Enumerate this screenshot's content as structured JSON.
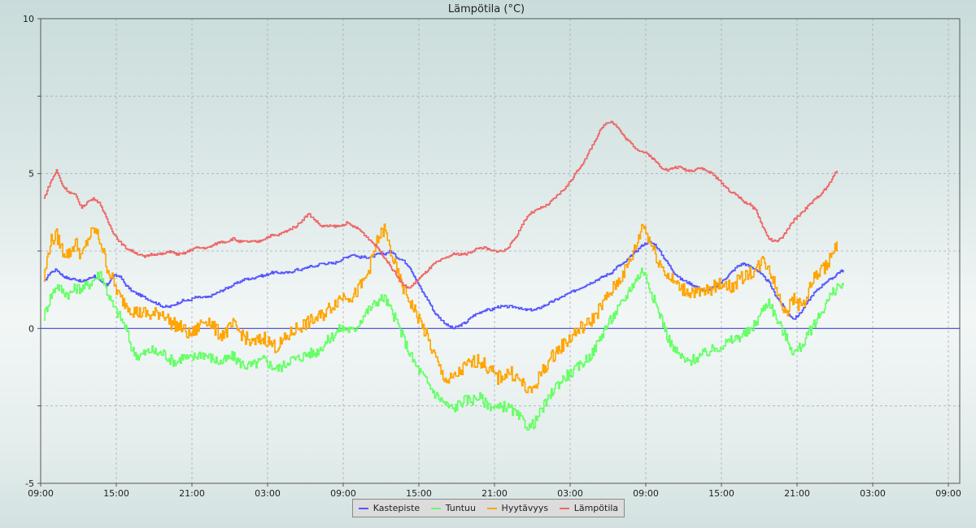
{
  "chart_data": {
    "type": "line",
    "title": "Lämpötila (°C)",
    "xlabel": "",
    "ylabel": "",
    "ylim": [
      -5,
      10
    ],
    "yticks": [
      -5,
      0,
      5,
      10
    ],
    "xticks": [
      "09:00",
      "15:00",
      "21:00",
      "03:00",
      "09:00",
      "15:00",
      "21:00",
      "03:00",
      "09:00",
      "15:00",
      "21:00",
      "03:00",
      "09:00"
    ],
    "x_hours_step": 0.5,
    "x_start_label": "09:15",
    "grid": true,
    "legend_position": "bottom-center",
    "series": [
      {
        "name": "Kastepiste",
        "color": "#5555ff",
        "values": [
          1.5,
          1.8,
          1.9,
          1.7,
          1.6,
          1.6,
          1.5,
          1.6,
          1.7,
          1.5,
          1.4,
          1.7,
          1.7,
          1.4,
          1.2,
          1.1,
          1.0,
          0.9,
          0.8,
          0.7,
          0.7,
          0.8,
          0.9,
          0.9,
          1.0,
          1.0,
          1.0,
          1.1,
          1.2,
          1.3,
          1.4,
          1.5,
          1.6,
          1.6,
          1.7,
          1.7,
          1.8,
          1.8,
          1.8,
          1.8,
          1.9,
          1.9,
          2.0,
          2.0,
          2.1,
          2.1,
          2.1,
          2.2,
          2.3,
          2.4,
          2.3,
          2.3,
          2.3,
          2.4,
          2.4,
          2.5,
          2.3,
          2.2,
          2.0,
          1.6,
          1.2,
          0.9,
          0.5,
          0.3,
          0.1,
          0.0,
          0.1,
          0.2,
          0.4,
          0.5,
          0.6,
          0.6,
          0.7,
          0.7,
          0.7,
          0.7,
          0.6,
          0.6,
          0.6,
          0.7,
          0.8,
          0.9,
          1.0,
          1.1,
          1.2,
          1.3,
          1.4,
          1.5,
          1.6,
          1.7,
          1.8,
          2.0,
          2.1,
          2.3,
          2.5,
          2.7,
          2.8,
          2.7,
          2.4,
          2.1,
          1.8,
          1.6,
          1.5,
          1.4,
          1.3,
          1.2,
          1.3,
          1.4,
          1.6,
          1.8,
          2.0,
          2.1,
          2.0,
          1.9,
          1.7,
          1.5,
          1.1,
          0.8,
          0.5,
          0.3,
          0.5,
          0.8,
          1.1,
          1.3,
          1.5,
          1.6,
          1.8,
          1.9
        ]
      },
      {
        "name": "Tuntuu",
        "color": "#66ff66",
        "values": [
          0.4,
          1.0,
          1.4,
          1.2,
          1.1,
          1.3,
          1.3,
          1.4,
          1.6,
          1.8,
          1.2,
          0.7,
          0.4,
          0.0,
          -0.7,
          -0.9,
          -0.8,
          -0.7,
          -0.8,
          -0.8,
          -1.0,
          -1.1,
          -0.9,
          -1.0,
          -0.9,
          -0.8,
          -0.9,
          -1.0,
          -1.1,
          -1.0,
          -0.9,
          -1.1,
          -1.2,
          -1.2,
          -1.1,
          -1.0,
          -1.2,
          -1.3,
          -1.2,
          -1.0,
          -1.0,
          -0.9,
          -0.8,
          -0.8,
          -0.6,
          -0.4,
          -0.2,
          0.0,
          0.0,
          -0.1,
          0.2,
          0.5,
          0.7,
          0.9,
          1.0,
          0.6,
          0.2,
          -0.3,
          -0.8,
          -1.2,
          -1.5,
          -1.8,
          -2.1,
          -2.3,
          -2.5,
          -2.6,
          -2.4,
          -2.3,
          -2.3,
          -2.2,
          -2.4,
          -2.5,
          -2.6,
          -2.5,
          -2.6,
          -2.8,
          -3.0,
          -3.2,
          -3.0,
          -2.6,
          -2.3,
          -1.9,
          -1.7,
          -1.5,
          -1.4,
          -1.2,
          -1.0,
          -0.8,
          -0.4,
          0.0,
          0.3,
          0.6,
          0.9,
          1.3,
          1.6,
          1.9,
          1.4,
          0.8,
          0.3,
          -0.3,
          -0.7,
          -0.9,
          -1.1,
          -1.0,
          -0.9,
          -0.8,
          -0.7,
          -0.6,
          -0.5,
          -0.4,
          -0.3,
          -0.2,
          -0.1,
          0.2,
          0.6,
          0.9,
          0.4,
          0.0,
          -0.4,
          -0.8,
          -0.6,
          -0.3,
          0.1,
          0.4,
          0.8,
          1.1,
          1.4,
          1.3
        ]
      },
      {
        "name": "Hyytävyys",
        "color": "#ffa500",
        "values": [
          1.6,
          2.8,
          3.0,
          2.5,
          2.4,
          2.8,
          2.3,
          2.9,
          3.2,
          2.8,
          2.0,
          1.5,
          1.0,
          0.8,
          0.6,
          0.5,
          0.5,
          0.4,
          0.5,
          0.5,
          0.2,
          0.1,
          0.0,
          -0.2,
          -0.1,
          0.2,
          0.3,
          0.0,
          -0.2,
          -0.1,
          0.1,
          -0.1,
          -0.3,
          -0.5,
          -0.4,
          -0.3,
          -0.5,
          -0.6,
          -0.4,
          -0.2,
          0.0,
          0.1,
          0.2,
          0.3,
          0.4,
          0.6,
          0.8,
          1.0,
          1.1,
          1.0,
          1.3,
          1.6,
          2.2,
          2.9,
          3.2,
          2.5,
          1.8,
          1.3,
          0.9,
          0.5,
          0.1,
          -0.4,
          -0.9,
          -1.4,
          -1.7,
          -1.6,
          -1.4,
          -1.2,
          -1.1,
          -1.0,
          -1.2,
          -1.4,
          -1.6,
          -1.5,
          -1.4,
          -1.6,
          -1.8,
          -2.1,
          -1.8,
          -1.4,
          -1.1,
          -0.8,
          -0.6,
          -0.4,
          -0.2,
          0.0,
          0.1,
          0.3,
          0.6,
          0.9,
          1.2,
          1.5,
          1.8,
          2.2,
          2.7,
          3.4,
          2.9,
          2.4,
          2.0,
          1.7,
          1.5,
          1.3,
          1.2,
          1.2,
          1.1,
          1.2,
          1.3,
          1.4,
          1.5,
          1.3,
          1.5,
          1.7,
          1.8,
          1.9,
          2.2,
          2.0,
          1.4,
          0.8,
          0.6,
          1.0,
          0.7,
          1.0,
          1.6,
          1.8,
          2.0,
          2.4,
          2.7
        ]
      },
      {
        "name": "Lämpötila",
        "color": "#ee6666",
        "values": [
          4.2,
          4.7,
          5.1,
          4.6,
          4.4,
          4.3,
          3.9,
          4.1,
          4.2,
          4.0,
          3.5,
          3.1,
          2.8,
          2.6,
          2.5,
          2.4,
          2.3,
          2.4,
          2.4,
          2.4,
          2.5,
          2.4,
          2.4,
          2.5,
          2.6,
          2.6,
          2.6,
          2.7,
          2.8,
          2.8,
          2.9,
          2.8,
          2.8,
          2.8,
          2.8,
          2.9,
          3.0,
          3.0,
          3.1,
          3.2,
          3.3,
          3.5,
          3.7,
          3.5,
          3.3,
          3.3,
          3.3,
          3.3,
          3.4,
          3.3,
          3.2,
          3.0,
          2.8,
          2.6,
          2.3,
          2.0,
          1.7,
          1.4,
          1.3,
          1.5,
          1.7,
          1.9,
          2.1,
          2.2,
          2.3,
          2.4,
          2.4,
          2.4,
          2.5,
          2.6,
          2.6,
          2.5,
          2.5,
          2.5,
          2.7,
          3.0,
          3.4,
          3.7,
          3.8,
          3.9,
          4.0,
          4.2,
          4.4,
          4.6,
          4.9,
          5.2,
          5.5,
          5.9,
          6.3,
          6.6,
          6.7,
          6.5,
          6.2,
          6.0,
          5.8,
          5.7,
          5.6,
          5.4,
          5.2,
          5.1,
          5.2,
          5.2,
          5.1,
          5.1,
          5.2,
          5.1,
          5.0,
          4.8,
          4.6,
          4.4,
          4.3,
          4.1,
          4.0,
          3.8,
          3.3,
          2.9,
          2.8,
          2.9,
          3.2,
          3.5,
          3.7,
          3.9,
          4.1,
          4.3,
          4.5,
          4.8,
          5.2
        ]
      }
    ]
  }
}
